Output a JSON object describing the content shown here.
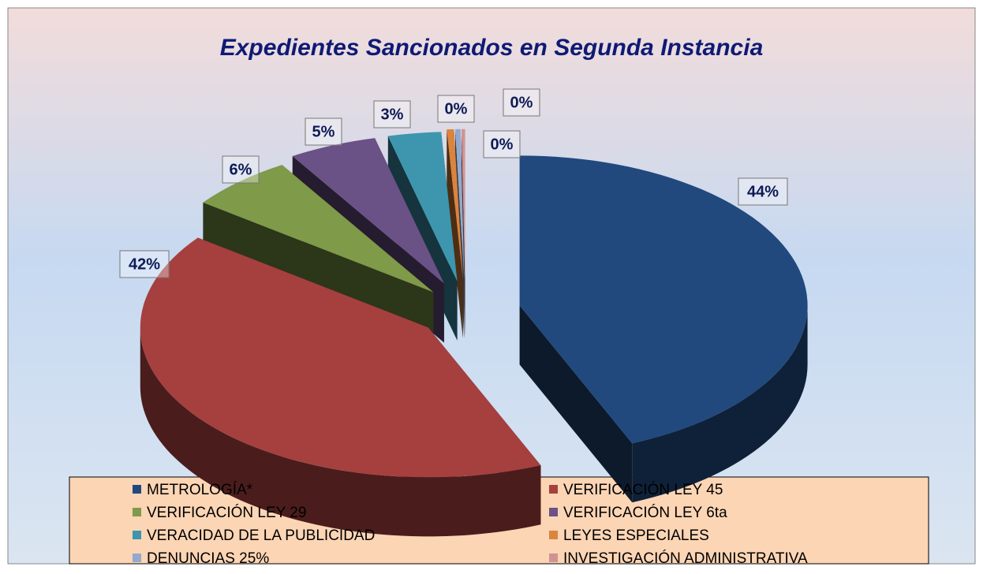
{
  "chart_data": {
    "type": "pie",
    "title": "Expedientes Sancionados en Segunda Instancia",
    "categories": [
      "METROLOGÍA*",
      "VERIFICACIÓN LEY 45",
      "VERIFICACIÓN LEY 29",
      "VERIFICACIÓN LEY 6ta",
      "VERACIDAD DE LA PUBLICIDAD",
      "LEYES ESPECIALES",
      "DENUNCIAS 25%",
      "INVESTIGACIÓN ADMINISTRATIVA"
    ],
    "values": [
      44,
      42,
      6,
      5,
      3,
      0.4,
      0.3,
      0.2
    ],
    "value_labels": [
      "44%",
      "42%",
      "6%",
      "5%",
      "3%",
      "0%",
      "0%",
      "0%"
    ],
    "colors": [
      "#21497d",
      "#a5403f",
      "#7f9a48",
      "#6a5186",
      "#3d96ae",
      "#db843d",
      "#93a9cf",
      "#d19392"
    ],
    "legend": "bottom"
  }
}
